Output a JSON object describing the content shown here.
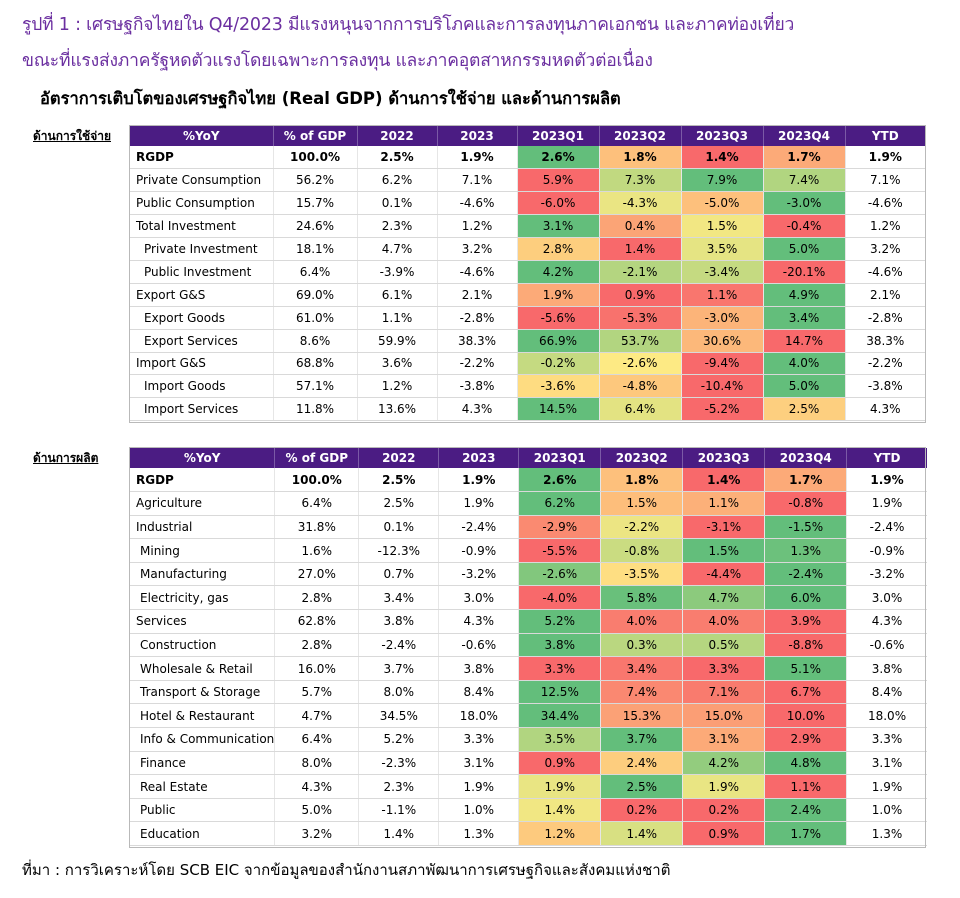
{
  "heading": {
    "line1": "รูปที่ 1 : เศรษฐกิจไทยใน Q4/2023 มีแรงหนุนจากการบริโภคและการลงทุนภาคเอกชน และภาคท่องเที่ยว",
    "line2": "ขณะที่แรงส่งภาครัฐหดตัวแรงโดยเฉพาะการลงทุน และภาคอุตสาหกรรมหดตัวต่อเนื่อง"
  },
  "subtitle": "อัตราการเติบโตของเศรษฐกิจไทย (Real GDP) ด้านการใช้จ่าย และด้านการผลิต",
  "source": "ที่มา : การวิเคราะห์โดย SCB EIC จากข้อมูลของสำนักงานสภาพัฒนาการเศรษฐกิจและสังคมแห่งชาติ",
  "colors": {
    "header_bg": "#4b1c83",
    "scale_low": "#f8696b",
    "scale_mid": "#ffeb84",
    "scale_high": "#63be7b"
  },
  "chart_data": [
    {
      "type": "table",
      "section_label": "ด้านการใช้จ่าย",
      "columns": [
        "%YoY",
        "% of GDP",
        "2022",
        "2023",
        "2023Q1",
        "2023Q2",
        "2023Q3",
        "2023Q4",
        "YTD"
      ],
      "rows": [
        {
          "label": "RGDP",
          "style": "bold",
          "values": [
            "100.0%",
            "2.5%",
            "1.9%",
            "2.6%",
            "1.8%",
            "1.4%",
            "1.7%",
            "1.9%"
          ],
          "q": [
            2.6,
            1.8,
            1.4,
            1.7
          ]
        },
        {
          "label": "Private Consumption",
          "style": "",
          "values": [
            "56.2%",
            "6.2%",
            "7.1%",
            "5.9%",
            "7.3%",
            "7.9%",
            "7.4%",
            "7.1%"
          ],
          "q": [
            5.9,
            7.3,
            7.9,
            7.4
          ]
        },
        {
          "label": "Public Consumption",
          "style": "",
          "values": [
            "15.7%",
            "0.1%",
            "-4.6%",
            "-6.0%",
            "-4.3%",
            "-5.0%",
            "-3.0%",
            "-4.6%"
          ],
          "q": [
            -6.0,
            -4.3,
            -5.0,
            -3.0
          ]
        },
        {
          "label": "Total Investment",
          "style": "",
          "values": [
            "24.6%",
            "2.3%",
            "1.2%",
            "3.1%",
            "0.4%",
            "1.5%",
            "-0.4%",
            "1.2%"
          ],
          "q": [
            3.1,
            0.4,
            1.5,
            -0.4
          ]
        },
        {
          "label": "Private Investment",
          "style": "indent",
          "values": [
            "18.1%",
            "4.7%",
            "3.2%",
            "2.8%",
            "1.4%",
            "3.5%",
            "5.0%",
            "3.2%"
          ],
          "q": [
            2.8,
            1.4,
            3.5,
            5.0
          ]
        },
        {
          "label": "Public Investment",
          "style": "indent",
          "values": [
            "6.4%",
            "-3.9%",
            "-4.6%",
            "4.2%",
            "-2.1%",
            "-3.4%",
            "-20.1%",
            "-4.6%"
          ],
          "q": [
            4.2,
            -2.1,
            -3.4,
            -20.1
          ]
        },
        {
          "label": "Export G&S",
          "style": "",
          "values": [
            "69.0%",
            "6.1%",
            "2.1%",
            "1.9%",
            "0.9%",
            "1.1%",
            "4.9%",
            "2.1%"
          ],
          "q": [
            1.9,
            0.9,
            1.1,
            4.9
          ]
        },
        {
          "label": "Export Goods",
          "style": "indent",
          "values": [
            "61.0%",
            "1.1%",
            "-2.8%",
            "-5.6%",
            "-5.3%",
            "-3.0%",
            "3.4%",
            "-2.8%"
          ],
          "q": [
            -5.6,
            -5.3,
            -3.0,
            3.4
          ]
        },
        {
          "label": "Export Services",
          "style": "indent",
          "values": [
            "8.6%",
            "59.9%",
            "38.3%",
            "66.9%",
            "53.7%",
            "30.6%",
            "14.7%",
            "38.3%"
          ],
          "q": [
            66.9,
            53.7,
            30.6,
            14.7
          ]
        },
        {
          "label": "Import G&S",
          "style": "",
          "values": [
            "68.8%",
            "3.6%",
            "-2.2%",
            "-0.2%",
            "-2.6%",
            "-9.4%",
            "4.0%",
            "-2.2%"
          ],
          "q": [
            -0.2,
            -2.6,
            -9.4,
            4.0
          ]
        },
        {
          "label": "Import Goods",
          "style": "indent",
          "values": [
            "57.1%",
            "1.2%",
            "-3.8%",
            "-3.6%",
            "-4.8%",
            "-10.4%",
            "5.0%",
            "-3.8%"
          ],
          "q": [
            -3.6,
            -4.8,
            -10.4,
            5.0
          ]
        },
        {
          "label": "Import Services",
          "style": "indent",
          "values": [
            "11.8%",
            "13.6%",
            "4.3%",
            "14.5%",
            "6.4%",
            "-5.2%",
            "2.5%",
            "4.3%"
          ],
          "q": [
            14.5,
            6.4,
            -5.2,
            2.5
          ]
        }
      ]
    },
    {
      "type": "table",
      "section_label": "ด้านการผลิต",
      "columns": [
        "%YoY",
        "% of GDP",
        "2022",
        "2023",
        "2023Q1",
        "2023Q2",
        "2023Q3",
        "2023Q4",
        "YTD"
      ],
      "rows": [
        {
          "label": "RGDP",
          "style": "bold",
          "values": [
            "100.0%",
            "2.5%",
            "1.9%",
            "2.6%",
            "1.8%",
            "1.4%",
            "1.7%",
            "1.9%"
          ],
          "q": [
            2.6,
            1.8,
            1.4,
            1.7
          ]
        },
        {
          "label": "Agriculture",
          "style": "boldlabel",
          "values": [
            "6.4%",
            "2.5%",
            "1.9%",
            "6.2%",
            "1.5%",
            "1.1%",
            "-0.8%",
            "1.9%"
          ],
          "q": [
            6.2,
            1.5,
            1.1,
            -0.8
          ]
        },
        {
          "label": "Industrial",
          "style": "boldlabel",
          "values": [
            "31.8%",
            "0.1%",
            "-2.4%",
            "-2.9%",
            "-2.2%",
            "-3.1%",
            "-1.5%",
            "-2.4%"
          ],
          "q": [
            -2.9,
            -2.2,
            -3.1,
            -1.5
          ]
        },
        {
          "label": "Mining",
          "style": "indent2",
          "values": [
            "1.6%",
            "-12.3%",
            "-0.9%",
            "-5.5%",
            "-0.8%",
            "1.5%",
            "1.3%",
            "-0.9%"
          ],
          "q": [
            -5.5,
            -0.8,
            1.5,
            1.3
          ]
        },
        {
          "label": "Manufacturing",
          "style": "indent2",
          "values": [
            "27.0%",
            "0.7%",
            "-3.2%",
            "-2.6%",
            "-3.5%",
            "-4.4%",
            "-2.4%",
            "-3.2%"
          ],
          "q": [
            -2.6,
            -3.5,
            -4.4,
            -2.4
          ]
        },
        {
          "label": "Electricity, gas",
          "style": "indent2",
          "values": [
            "2.8%",
            "3.4%",
            "3.0%",
            "-4.0%",
            "5.8%",
            "4.7%",
            "6.0%",
            "3.0%"
          ],
          "q": [
            -4.0,
            5.8,
            4.7,
            6.0
          ]
        },
        {
          "label": "Services",
          "style": "boldlabel",
          "values": [
            "62.8%",
            "3.8%",
            "4.3%",
            "5.2%",
            "4.0%",
            "4.0%",
            "3.9%",
            "4.3%"
          ],
          "q": [
            5.2,
            4.0,
            4.0,
            3.9
          ]
        },
        {
          "label": "Construction",
          "style": "indent2",
          "values": [
            "2.8%",
            "-2.4%",
            "-0.6%",
            "3.8%",
            "0.3%",
            "0.5%",
            "-8.8%",
            "-0.6%"
          ],
          "q": [
            3.8,
            0.3,
            0.5,
            -8.8
          ]
        },
        {
          "label": "Wholesale & Retail",
          "style": "indent2",
          "values": [
            "16.0%",
            "3.7%",
            "3.8%",
            "3.3%",
            "3.4%",
            "3.3%",
            "5.1%",
            "3.8%"
          ],
          "q": [
            3.3,
            3.4,
            3.3,
            5.1
          ]
        },
        {
          "label": "Transport & Storage",
          "style": "indent2",
          "values": [
            "5.7%",
            "8.0%",
            "8.4%",
            "12.5%",
            "7.4%",
            "7.1%",
            "6.7%",
            "8.4%"
          ],
          "q": [
            12.5,
            7.4,
            7.1,
            6.7
          ]
        },
        {
          "label": "Hotel & Restaurant",
          "style": "indent2",
          "values": [
            "4.7%",
            "34.5%",
            "18.0%",
            "34.4%",
            "15.3%",
            "15.0%",
            "10.0%",
            "18.0%"
          ],
          "q": [
            34.4,
            15.3,
            15.0,
            10.0
          ]
        },
        {
          "label": "Info & Communication",
          "style": "indent2",
          "values": [
            "6.4%",
            "5.2%",
            "3.3%",
            "3.5%",
            "3.7%",
            "3.1%",
            "2.9%",
            "3.3%"
          ],
          "q": [
            3.5,
            3.7,
            3.1,
            2.9
          ]
        },
        {
          "label": "Finance",
          "style": "indent2",
          "values": [
            "8.0%",
            "-2.3%",
            "3.1%",
            "0.9%",
            "2.4%",
            "4.2%",
            "4.8%",
            "3.1%"
          ],
          "q": [
            0.9,
            2.4,
            4.2,
            4.8
          ]
        },
        {
          "label": "Real Estate",
          "style": "indent2",
          "values": [
            "4.3%",
            "2.3%",
            "1.9%",
            "1.9%",
            "2.5%",
            "1.9%",
            "1.1%",
            "1.9%"
          ],
          "q": [
            1.9,
            2.5,
            1.9,
            1.1
          ]
        },
        {
          "label": "Public",
          "style": "indent2",
          "values": [
            "5.0%",
            "-1.1%",
            "1.0%",
            "1.4%",
            "0.2%",
            "0.2%",
            "2.4%",
            "1.0%"
          ],
          "q": [
            1.4,
            0.2,
            0.2,
            2.4
          ]
        },
        {
          "label": "Education",
          "style": "indent2",
          "values": [
            "3.2%",
            "1.4%",
            "1.3%",
            "1.2%",
            "1.4%",
            "0.9%",
            "1.7%",
            "1.3%"
          ],
          "q": [
            1.2,
            1.4,
            0.9,
            1.7
          ]
        }
      ]
    }
  ]
}
